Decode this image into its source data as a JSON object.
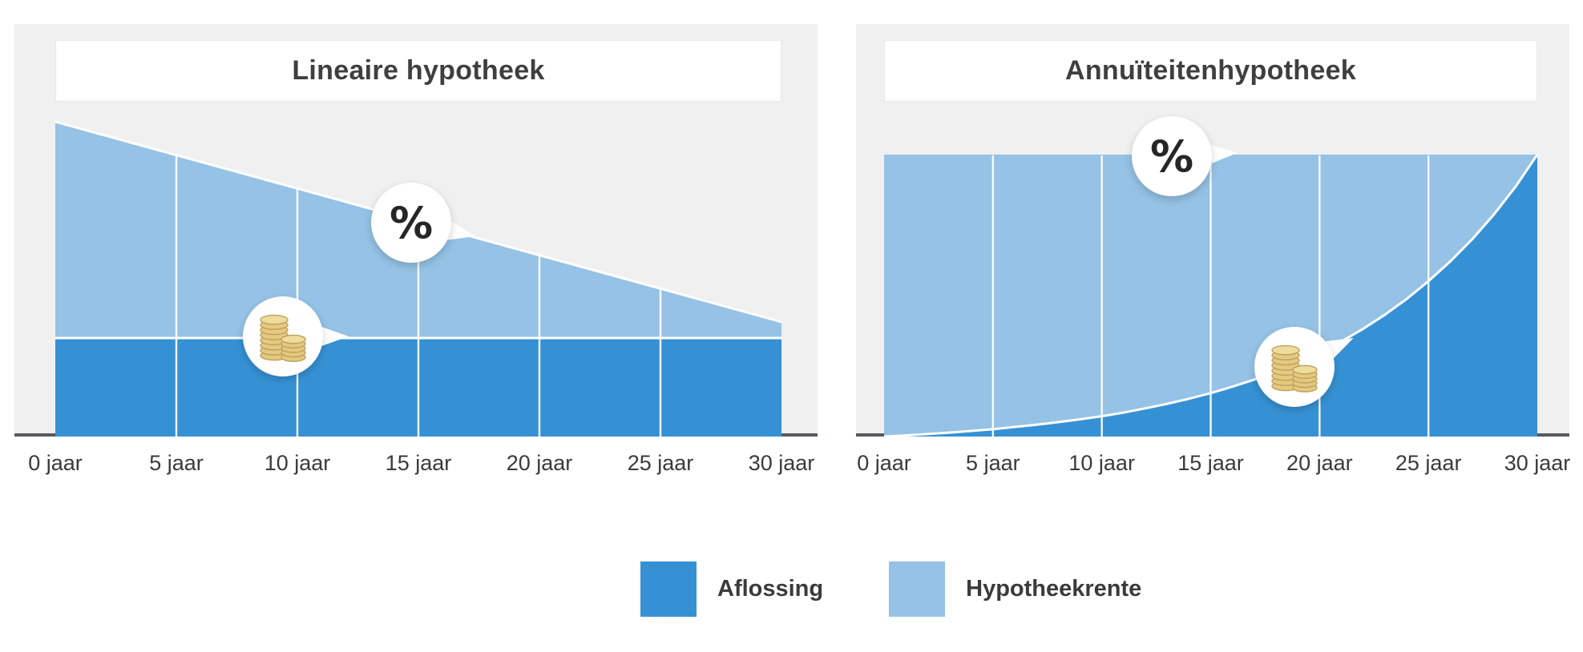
{
  "colors": {
    "aflossing": "#3691d4",
    "hypotheekrente": "#95c2e5",
    "panel_background": "#f0f0f0",
    "axis_line": "#565b60",
    "grid_line": "#ffffff",
    "text": "#3a3a3a"
  },
  "callouts": {
    "percent_symbol": "%",
    "percent_icon": "percent-icon",
    "coins_icon": "coins-icon"
  },
  "legend": {
    "position": "bottom-center",
    "items": [
      {
        "label": "Aflossing",
        "color": "#3691d4"
      },
      {
        "label": "Hypotheekrente",
        "color": "#95c2e5"
      }
    ]
  },
  "chart_data": [
    {
      "type": "area",
      "title": "Lineaire hypotheek",
      "categories": [
        "0 jaar",
        "5 jaar",
        "10 jaar",
        "15 jaar",
        "20 jaar",
        "25 jaar",
        "30 jaar"
      ],
      "x": [
        0,
        5,
        10,
        15,
        20,
        25,
        30
      ],
      "xlabel": "",
      "ylabel": "",
      "ylim": [
        0,
        100
      ],
      "stacked": true,
      "grid": "vertical-white",
      "gridline_years": [
        5,
        10,
        15,
        20,
        25
      ],
      "top_stroke": true,
      "series": [
        {
          "name": "Aflossing",
          "values": [
            31.3,
            31.3,
            31.3,
            31.3,
            31.3,
            31.3,
            31.3
          ]
        },
        {
          "name": "Hypotheekrente",
          "values": [
            68.7,
            58.1,
            47.5,
            36.9,
            26.3,
            15.7,
            5.1
          ]
        }
      ]
    },
    {
      "type": "area",
      "title": "Annuïteitenhypotheek",
      "categories": [
        "0 jaar",
        "5 jaar",
        "10 jaar",
        "15 jaar",
        "20 jaar",
        "25 jaar",
        "30 jaar"
      ],
      "x": [
        0,
        1,
        2,
        3,
        4,
        5,
        6,
        7,
        8,
        9,
        10,
        11,
        12,
        13,
        14,
        15,
        16,
        17,
        18,
        19,
        20,
        21,
        22,
        23,
        24,
        25,
        26,
        27,
        28,
        29,
        30
      ],
      "xlabel": "",
      "ylabel": "",
      "ylim": [
        0,
        100
      ],
      "stacked": true,
      "grid": "vertical-white",
      "gridline_years": [
        5,
        10,
        15,
        20,
        25
      ],
      "top_stroke": false,
      "series": [
        {
          "name": "Aflossing",
          "values": [
            0,
            0.4,
            0.9,
            1.4,
            2.0,
            2.6,
            3.4,
            4.2,
            5.1,
            6.1,
            7.2,
            8.5,
            10.0,
            11.6,
            13.4,
            15.4,
            17.7,
            20.2,
            23.0,
            26.2,
            29.8,
            33.7,
            38.2,
            43.2,
            48.8,
            55.1,
            62.1,
            69.9,
            78.7,
            88.6,
            100
          ]
        },
        {
          "name": "Hypotheekrente",
          "values": [
            100,
            99.6,
            99.1,
            98.6,
            98.0,
            97.4,
            96.6,
            95.8,
            94.9,
            93.9,
            92.8,
            91.5,
            90.0,
            88.4,
            86.6,
            84.6,
            82.3,
            79.8,
            77.0,
            73.8,
            70.2,
            66.3,
            61.8,
            56.8,
            51.2,
            44.9,
            37.9,
            30.1,
            21.3,
            11.4,
            0
          ]
        }
      ]
    }
  ]
}
